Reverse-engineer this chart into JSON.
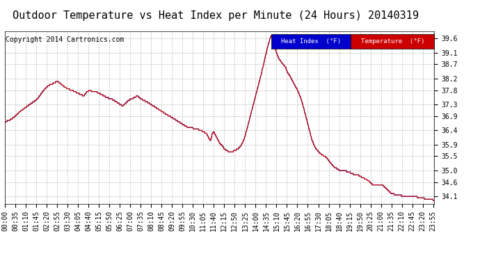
{
  "title": "Outdoor Temperature vs Heat Index per Minute (24 Hours) 20140319",
  "copyright": "Copyright 2014 Cartronics.com",
  "legend_heat_label": "Heat Index  (°F)",
  "legend_temp_label": "Temperature  (°F)",
  "heat_color": "#000099",
  "temp_color": "#cc0000",
  "legend_heat_bg": "#0000cc",
  "legend_temp_bg": "#cc0000",
  "ylim_min": 33.85,
  "ylim_max": 39.85,
  "yticks": [
    34.1,
    34.6,
    35.0,
    35.5,
    35.9,
    36.4,
    36.9,
    37.3,
    37.8,
    38.2,
    38.7,
    39.1,
    39.6
  ],
  "background_color": "#ffffff",
  "grid_color": "#aaaaaa",
  "title_fontsize": 11,
  "copyright_fontsize": 7,
  "tick_fontsize": 7,
  "total_minutes": 1440,
  "xtick_interval": 35,
  "xtick_labels": [
    "00:00",
    "00:35",
    "01:10",
    "01:45",
    "02:20",
    "02:55",
    "03:30",
    "04:05",
    "04:40",
    "05:15",
    "05:50",
    "06:25",
    "07:00",
    "07:35",
    "08:10",
    "08:45",
    "09:20",
    "09:55",
    "10:30",
    "11:05",
    "11:40",
    "12:15",
    "12:50",
    "13:25",
    "14:00",
    "14:35",
    "15:10",
    "15:45",
    "16:20",
    "16:55",
    "17:30",
    "18:05",
    "18:40",
    "19:15",
    "19:50",
    "20:25",
    "21:00",
    "21:35",
    "22:10",
    "22:45",
    "23:20",
    "23:55"
  ],
  "keypoints": [
    [
      0,
      36.7
    ],
    [
      15,
      36.75
    ],
    [
      30,
      36.85
    ],
    [
      50,
      37.05
    ],
    [
      70,
      37.2
    ],
    [
      90,
      37.35
    ],
    [
      110,
      37.5
    ],
    [
      130,
      37.8
    ],
    [
      145,
      37.95
    ],
    [
      155,
      38.0
    ],
    [
      165,
      38.05
    ],
    [
      175,
      38.1
    ],
    [
      185,
      38.05
    ],
    [
      195,
      37.95
    ],
    [
      210,
      37.85
    ],
    [
      225,
      37.8
    ],
    [
      235,
      37.75
    ],
    [
      245,
      37.7
    ],
    [
      255,
      37.65
    ],
    [
      265,
      37.6
    ],
    [
      275,
      37.75
    ],
    [
      285,
      37.8
    ],
    [
      295,
      37.75
    ],
    [
      305,
      37.75
    ],
    [
      315,
      37.7
    ],
    [
      325,
      37.65
    ],
    [
      340,
      37.55
    ],
    [
      355,
      37.5
    ],
    [
      365,
      37.45
    ],
    [
      380,
      37.35
    ],
    [
      395,
      37.25
    ],
    [
      405,
      37.35
    ],
    [
      415,
      37.45
    ],
    [
      425,
      37.5
    ],
    [
      435,
      37.55
    ],
    [
      445,
      37.6
    ],
    [
      455,
      37.5
    ],
    [
      465,
      37.45
    ],
    [
      475,
      37.4
    ],
    [
      490,
      37.3
    ],
    [
      505,
      37.2
    ],
    [
      520,
      37.1
    ],
    [
      535,
      37.0
    ],
    [
      550,
      36.9
    ],
    [
      560,
      36.85
    ],
    [
      575,
      36.75
    ],
    [
      590,
      36.65
    ],
    [
      605,
      36.55
    ],
    [
      615,
      36.5
    ],
    [
      625,
      36.5
    ],
    [
      635,
      36.45
    ],
    [
      645,
      36.45
    ],
    [
      655,
      36.4
    ],
    [
      665,
      36.35
    ],
    [
      675,
      36.3
    ],
    [
      685,
      36.1
    ],
    [
      690,
      36.05
    ],
    [
      695,
      36.3
    ],
    [
      700,
      36.35
    ],
    [
      705,
      36.25
    ],
    [
      710,
      36.15
    ],
    [
      715,
      36.05
    ],
    [
      720,
      35.95
    ],
    [
      725,
      35.9
    ],
    [
      730,
      35.85
    ],
    [
      735,
      35.75
    ],
    [
      745,
      35.7
    ],
    [
      750,
      35.65
    ],
    [
      755,
      35.65
    ],
    [
      760,
      35.65
    ],
    [
      770,
      35.7
    ],
    [
      780,
      35.75
    ],
    [
      790,
      35.85
    ],
    [
      800,
      36.05
    ],
    [
      810,
      36.4
    ],
    [
      820,
      36.8
    ],
    [
      830,
      37.2
    ],
    [
      840,
      37.6
    ],
    [
      850,
      38.0
    ],
    [
      860,
      38.4
    ],
    [
      870,
      38.85
    ],
    [
      878,
      39.2
    ],
    [
      883,
      39.4
    ],
    [
      887,
      39.55
    ],
    [
      890,
      39.65
    ],
    [
      893,
      39.7
    ],
    [
      896,
      39.65
    ],
    [
      900,
      39.5
    ],
    [
      905,
      39.3
    ],
    [
      910,
      39.1
    ],
    [
      918,
      38.9
    ],
    [
      925,
      38.8
    ],
    [
      933,
      38.7
    ],
    [
      940,
      38.6
    ],
    [
      948,
      38.4
    ],
    [
      955,
      38.3
    ],
    [
      962,
      38.15
    ],
    [
      970,
      38.0
    ],
    [
      978,
      37.85
    ],
    [
      985,
      37.7
    ],
    [
      992,
      37.5
    ],
    [
      998,
      37.3
    ],
    [
      1003,
      37.1
    ],
    [
      1008,
      36.9
    ],
    [
      1013,
      36.7
    ],
    [
      1018,
      36.5
    ],
    [
      1023,
      36.3
    ],
    [
      1028,
      36.1
    ],
    [
      1033,
      35.95
    ],
    [
      1040,
      35.8
    ],
    [
      1048,
      35.7
    ],
    [
      1055,
      35.6
    ],
    [
      1063,
      35.55
    ],
    [
      1070,
      35.5
    ],
    [
      1078,
      35.45
    ],
    [
      1085,
      35.35
    ],
    [
      1093,
      35.25
    ],
    [
      1100,
      35.15
    ],
    [
      1108,
      35.1
    ],
    [
      1115,
      35.05
    ],
    [
      1122,
      35.0
    ],
    [
      1130,
      35.0
    ],
    [
      1135,
      35.0
    ],
    [
      1140,
      35.0
    ],
    [
      1148,
      34.95
    ],
    [
      1155,
      34.95
    ],
    [
      1160,
      34.9
    ],
    [
      1165,
      34.9
    ],
    [
      1170,
      34.85
    ],
    [
      1178,
      34.85
    ],
    [
      1183,
      34.85
    ],
    [
      1190,
      34.8
    ],
    [
      1200,
      34.75
    ],
    [
      1210,
      34.7
    ],
    [
      1218,
      34.65
    ],
    [
      1223,
      34.6
    ],
    [
      1228,
      34.55
    ],
    [
      1233,
      34.5
    ],
    [
      1240,
      34.5
    ],
    [
      1248,
      34.5
    ],
    [
      1255,
      34.5
    ],
    [
      1260,
      34.5
    ],
    [
      1265,
      34.5
    ],
    [
      1270,
      34.45
    ],
    [
      1275,
      34.4
    ],
    [
      1280,
      34.35
    ],
    [
      1285,
      34.3
    ],
    [
      1290,
      34.25
    ],
    [
      1295,
      34.2
    ],
    [
      1300,
      34.2
    ],
    [
      1310,
      34.15
    ],
    [
      1320,
      34.15
    ],
    [
      1330,
      34.12
    ],
    [
      1340,
      34.1
    ],
    [
      1350,
      34.1
    ],
    [
      1360,
      34.1
    ],
    [
      1370,
      34.1
    ],
    [
      1380,
      34.08
    ],
    [
      1390,
      34.05
    ],
    [
      1400,
      34.03
    ],
    [
      1410,
      34.02
    ],
    [
      1420,
      34.01
    ],
    [
      1430,
      34.0
    ],
    [
      1439,
      33.95
    ]
  ]
}
